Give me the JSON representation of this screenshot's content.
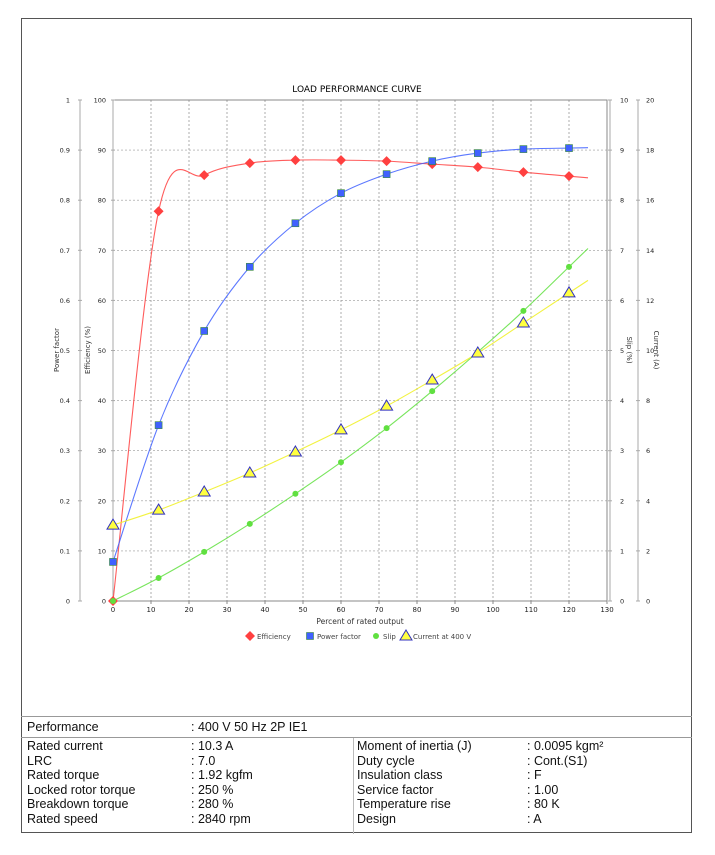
{
  "chart_data": {
    "type": "line",
    "title": "LOAD PERFORMANCE CURVE",
    "xlabel": "Percent of rated output",
    "xlim": [
      0,
      130
    ],
    "xticks": [
      0,
      10,
      20,
      30,
      40,
      50,
      60,
      70,
      80,
      90,
      100,
      110,
      120,
      130
    ],
    "grid": true,
    "legend_position": "bottom",
    "axes": {
      "power_factor": {
        "label": "Power factor",
        "range": [
          0,
          1
        ],
        "ticks": [
          "0",
          "0.1",
          "0.2",
          "0.3",
          "0.4",
          "0.5",
          "0.6",
          "0.7",
          "0.8",
          "0.9",
          "1"
        ]
      },
      "efficiency": {
        "label": "Efficiency (%)",
        "range": [
          0,
          100
        ],
        "ticks": [
          "0",
          "10",
          "20",
          "30",
          "40",
          "50",
          "60",
          "70",
          "80",
          "90",
          "100"
        ]
      },
      "slip": {
        "label": "Slip (%)",
        "range": [
          0,
          10
        ],
        "ticks": [
          "0",
          "1",
          "2",
          "3",
          "4",
          "5",
          "6",
          "7",
          "8",
          "9",
          "10"
        ]
      },
      "current": {
        "label": "Current (A)",
        "range": [
          0,
          20
        ],
        "ticks": [
          "0",
          "2",
          "4",
          "6",
          "8",
          "10",
          "12",
          "14",
          "16",
          "18",
          "20"
        ]
      }
    },
    "x": [
      0,
      12,
      24,
      36,
      48,
      60,
      72,
      84,
      96,
      108,
      120
    ],
    "series": [
      {
        "name": "Efficiency",
        "axis": "efficiency",
        "color": "#ff4040",
        "marker": "diamond",
        "values": [
          0,
          77.8,
          85.0,
          87.4,
          88.0,
          88.0,
          87.8,
          87.2,
          86.6,
          85.6,
          84.8
        ]
      },
      {
        "name": "Power factor",
        "axis": "power_factor",
        "color": "#4060ff",
        "marker": "square",
        "values": [
          0.078,
          0.351,
          0.539,
          0.667,
          0.754,
          0.814,
          0.852,
          0.878,
          0.894,
          0.902,
          0.904
        ]
      },
      {
        "name": "Slip",
        "axis": "slip",
        "color": "#60e040",
        "marker": "circle",
        "values": [
          0,
          0.46,
          0.98,
          1.54,
          2.14,
          2.77,
          3.45,
          4.19,
          4.97,
          5.79,
          6.67
        ]
      },
      {
        "name": "Current at 400 V",
        "axis": "current",
        "color": "#ffff40",
        "marker": "triangle",
        "values": [
          3.03,
          3.63,
          4.35,
          5.11,
          5.95,
          6.83,
          7.78,
          8.82,
          9.9,
          11.1,
          12.3
        ]
      }
    ]
  },
  "spec": {
    "performance": {
      "label": "Performance",
      "value": ": 400 V 50 Hz 2P IE1"
    },
    "left": [
      {
        "label": "Rated current",
        "value": ": 10.3 A"
      },
      {
        "label": "LRC",
        "value": ": 7.0"
      },
      {
        "label": "Rated torque",
        "value": ": 1.92 kgfm"
      },
      {
        "label": "Locked rotor torque",
        "value": ": 250 %"
      },
      {
        "label": "Breakdown torque",
        "value": ": 280 %"
      },
      {
        "label": "Rated speed",
        "value": ": 2840 rpm"
      }
    ],
    "right": [
      {
        "label": "Moment of inertia (J)",
        "value": ": 0.0095 kgm²"
      },
      {
        "label": "Duty cycle",
        "value": ": Cont.(S1)"
      },
      {
        "label": "Insulation class",
        "value": ": F"
      },
      {
        "label": "Service factor",
        "value": ": 1.00"
      },
      {
        "label": "Temperature rise",
        "value": ": 80 K"
      },
      {
        "label": "Design",
        "value": ": A"
      }
    ]
  }
}
